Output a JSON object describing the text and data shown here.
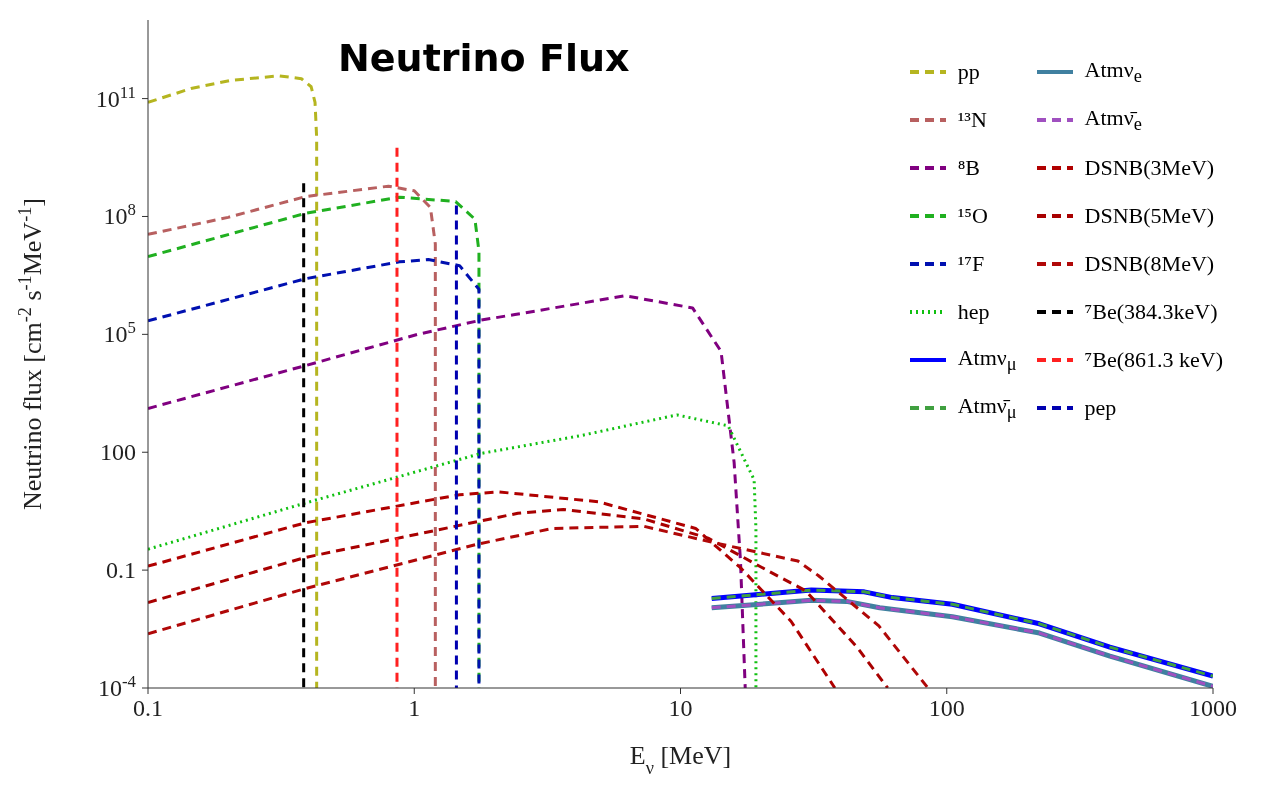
{
  "chart_data": {
    "type": "line",
    "title": "Neutrino Flux",
    "xlabel": "E$_{ν}$ [MeV]",
    "ylabel": "Neutrino flux [cm$^{-2}$ s$^{-1}$MeV$^{-1}$]",
    "log": "xy",
    "xlim": [
      0.1,
      1000
    ],
    "xticks": [
      0.1,
      1,
      10,
      100,
      1000
    ],
    "ylim": [
      0.0001,
      10000000000000.0
    ],
    "yticks": [
      {
        "value": 0.0001,
        "label": "10$^{-4}$"
      },
      0.1,
      100,
      {
        "value": 100000,
        "label": "10$^{5}$"
      },
      {
        "value": 100000000,
        "label": "10$^{8}$"
      },
      {
        "value": 100000000000,
        "label": "10$^{11}$"
      }
    ],
    "grid": false,
    "legend": "top right",
    "marker": "none",
    "series": [
      {
        "name": "pp",
        "color": "#b5b520",
        "line_style": "dashed",
        "x": [
          0.1,
          0.145,
          0.204,
          0.31,
          0.377,
          0.41,
          0.424,
          0.43,
          0.43
        ],
        "values": [
          80000000000.0,
          180000000000.0,
          290000000000.0,
          380000000000.0,
          320000000000.0,
          200000000000.0,
          80000000000.0,
          10000000000.0,
          0.0001
        ]
      },
      {
        "name": "¹³N",
        "color": "#b86060",
        "line_style": "dashed",
        "x": [
          0.1,
          0.2,
          0.39,
          0.8,
          1.0,
          1.15,
          1.2,
          1.2
        ],
        "values": [
          35000000.0,
          95000000.0,
          320000000.0,
          590000000.0,
          450000000.0,
          170000000.0,
          20000000.0,
          0.0001
        ]
      },
      {
        "name": "⁸B",
        "color": "#800080",
        "line_style": "dashed",
        "x": [
          0.1,
          0.39,
          1.03,
          1.78,
          2.39,
          6.2,
          11.1,
          14.2,
          15.9,
          16.8,
          17.5
        ],
        "values": [
          1300,
          16000,
          100000,
          230000,
          320000,
          960000,
          470000,
          37000,
          55,
          0.17,
          0.0001
        ]
      },
      {
        "name": "¹⁵O",
        "color": "#20b020",
        "line_style": "dashed",
        "x": [
          0.1,
          0.39,
          0.88,
          1.43,
          1.69,
          1.75,
          1.75
        ],
        "values": [
          9500000.0,
          120000000.0,
          310000000.0,
          240000000.0,
          85000000.0,
          13000000.0,
          0.0001
        ]
      },
      {
        "name": "¹⁷F",
        "color": "#0010b0",
        "line_style": "dashed",
        "x": [
          0.1,
          0.39,
          0.88,
          1.13,
          1.48,
          1.75,
          1.75
        ],
        "values": [
          220000,
          2600000.0,
          7000000.0,
          8000000.0,
          5600000.0,
          1400000.0,
          0.0001
        ]
      },
      {
        "name": "hep",
        "color": "#10c010",
        "line_style": "dotted",
        "x": [
          0.1,
          0.39,
          1.78,
          4.2,
          9.7,
          15.1,
          18.9,
          19.2,
          19.2
        ],
        "values": [
          0.34,
          5.1,
          93,
          263,
          890,
          470,
          20,
          1.15,
          0.0001
        ]
      },
      {
        "name": "Atmν$_{μ}$",
        "color": "#0000ff",
        "line_style": "solid",
        "x": [
          13.1,
          31,
          49,
          62.5,
          105,
          223,
          410,
          1000
        ],
        "values": [
          0.019,
          0.031,
          0.028,
          0.02,
          0.0135,
          0.0043,
          0.0011,
          0.0002
        ]
      },
      {
        "name": "Atmν̄$_{μ}$",
        "color": "#40a040",
        "line_style": "dashed",
        "x": [
          13.1,
          31,
          49,
          62.5,
          105,
          223,
          410,
          1000
        ],
        "values": [
          0.019,
          0.031,
          0.028,
          0.02,
          0.0135,
          0.0043,
          0.0011,
          0.0002
        ]
      },
      {
        "name": "Atmν$_{e}$",
        "color": "#4080a0",
        "line_style": "solid",
        "x": [
          13.1,
          31,
          42,
          56,
          105,
          223,
          410,
          1000
        ],
        "values": [
          0.011,
          0.017,
          0.016,
          0.011,
          0.0065,
          0.0025,
          0.00065,
          0.00011
        ]
      },
      {
        "name": "Atmν̄$_{e}$",
        "color": "#a050c0",
        "line_style": "dashed",
        "x": [
          13.1,
          31,
          42,
          56,
          105,
          223,
          410,
          1000
        ],
        "values": [
          0.011,
          0.017,
          0.016,
          0.011,
          0.0065,
          0.0025,
          0.00065,
          0.00011
        ]
      },
      {
        "name": "DSNB(3MeV)",
        "color": "#b00000",
        "line_style": "dashed",
        "x": [
          0.1,
          0.39,
          1.48,
          2.07,
          4.9,
          11.4,
          16.8,
          26,
          38
        ],
        "values": [
          0.126,
          1.6,
          8.3,
          9.8,
          5.5,
          1.15,
          0.115,
          0.005,
          0.0001
        ]
      },
      {
        "name": "DSNB(5MeV)",
        "color": "#a80000",
        "line_style": "dashed",
        "x": [
          0.1,
          0.39,
          2.45,
          3.63,
          7.3,
          12.7,
          22.4,
          29.5,
          46,
          60
        ],
        "values": [
          0.015,
          0.21,
          2.8,
          3.5,
          2.0,
          0.65,
          0.08,
          0.03,
          0.0011,
          0.0001
        ]
      },
      {
        "name": "DSNB(8MeV)",
        "color": "#b00808",
        "line_style": "dashed",
        "x": [
          0.1,
          0.39,
          1.71,
          3.3,
          7.3,
          12.7,
          27.6,
          33,
          55.6,
          85
        ],
        "values": [
          0.0024,
          0.034,
          0.45,
          1.15,
          1.3,
          0.54,
          0.17,
          0.072,
          0.0038,
          0.0001
        ]
      },
      {
        "name": "⁷Be(384.3keV)",
        "color": "#000000",
        "line_style": "dashed",
        "x": [
          0.3843,
          0.3843
        ],
        "values": [
          700000000.0,
          0.0001
        ]
      },
      {
        "name": "⁷Be(861.3 keV)",
        "color": "#ff2020",
        "line_style": "dashed",
        "x": [
          0.8613,
          0.8613
        ],
        "values": [
          5600000000.0,
          0.0001
        ]
      },
      {
        "name": "pep",
        "color": "#0000b0",
        "line_style": "dashed",
        "x": [
          1.44,
          1.44
        ],
        "values": [
          190000000.0,
          0.0001
        ]
      }
    ]
  }
}
